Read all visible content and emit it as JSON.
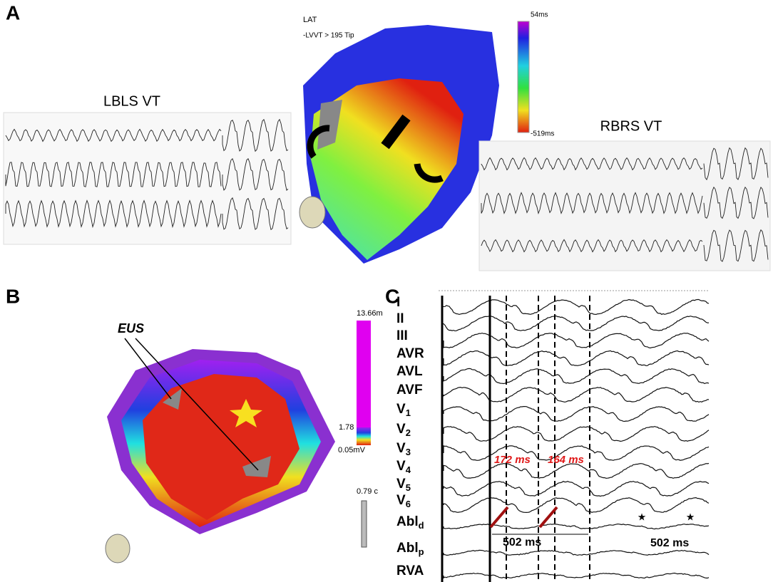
{
  "panel_a": {
    "label": "A",
    "left_title": "LBLS VT",
    "map_title": "LAT",
    "map_subtitle": "-LVVT > 195 Tip",
    "scale_top": "54ms",
    "scale_bottom": "-519ms",
    "right_title": "RBRS VT"
  },
  "panel_b": {
    "label": "B",
    "annotation": "EUS",
    "scale_top": "13.66m",
    "scale_mid": "1.78",
    "scale_bottom": "0.05mV",
    "scale_size": "0.79 c"
  },
  "panel_c": {
    "label": "C",
    "leads": [
      {
        "base": "I"
      },
      {
        "base": "II"
      },
      {
        "base": "III"
      },
      {
        "base": "AVR"
      },
      {
        "base": "AVL"
      },
      {
        "base": "AVF"
      },
      {
        "base": "V",
        "sub": "1"
      },
      {
        "base": "V",
        "sub": "2"
      },
      {
        "base": "V",
        "sub": "3"
      },
      {
        "base": "V",
        "sub": "4"
      },
      {
        "base": "V",
        "sub": "5"
      },
      {
        "base": "V",
        "sub": "6"
      },
      {
        "base": "Abl",
        "sub": "d"
      },
      {
        "base": "Abl",
        "sub": "p"
      },
      {
        "base": "RVA"
      }
    ],
    "intervals": [
      "172 ms",
      "164 ms"
    ],
    "cycle_lengths": [
      "502 ms",
      "502 ms"
    ]
  }
}
